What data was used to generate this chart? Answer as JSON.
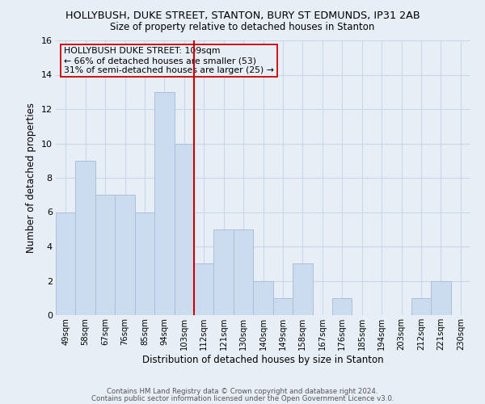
{
  "title": "HOLLYBUSH, DUKE STREET, STANTON, BURY ST EDMUNDS, IP31 2AB",
  "subtitle": "Size of property relative to detached houses in Stanton",
  "xlabel": "Distribution of detached houses by size in Stanton",
  "ylabel": "Number of detached properties",
  "bar_labels": [
    "49sqm",
    "58sqm",
    "67sqm",
    "76sqm",
    "85sqm",
    "94sqm",
    "103sqm",
    "112sqm",
    "121sqm",
    "130sqm",
    "140sqm",
    "149sqm",
    "158sqm",
    "167sqm",
    "176sqm",
    "185sqm",
    "194sqm",
    "203sqm",
    "212sqm",
    "221sqm",
    "230sqm"
  ],
  "bar_values": [
    6,
    9,
    7,
    7,
    6,
    13,
    10,
    3,
    5,
    5,
    2,
    1,
    3,
    0,
    1,
    0,
    0,
    0,
    1,
    2,
    0
  ],
  "bar_color": "#ccdcef",
  "bar_edge_color": "#a8c0db",
  "grid_color": "#c8d8e8",
  "background_color": "#e8eef6",
  "vline_x_index": 7,
  "vline_color": "#cc0000",
  "annotation_line1": "HOLLYBUSH DUKE STREET: 109sqm",
  "annotation_line2": "← 66% of detached houses are smaller (53)",
  "annotation_line3": "31% of semi-detached houses are larger (25) →",
  "annotation_box_edge": "#cc0000",
  "ylim": [
    0,
    16
  ],
  "yticks": [
    0,
    2,
    4,
    6,
    8,
    10,
    12,
    14,
    16
  ],
  "footer1": "Contains HM Land Registry data © Crown copyright and database right 2024.",
  "footer2": "Contains public sector information licensed under the Open Government Licence v3.0."
}
